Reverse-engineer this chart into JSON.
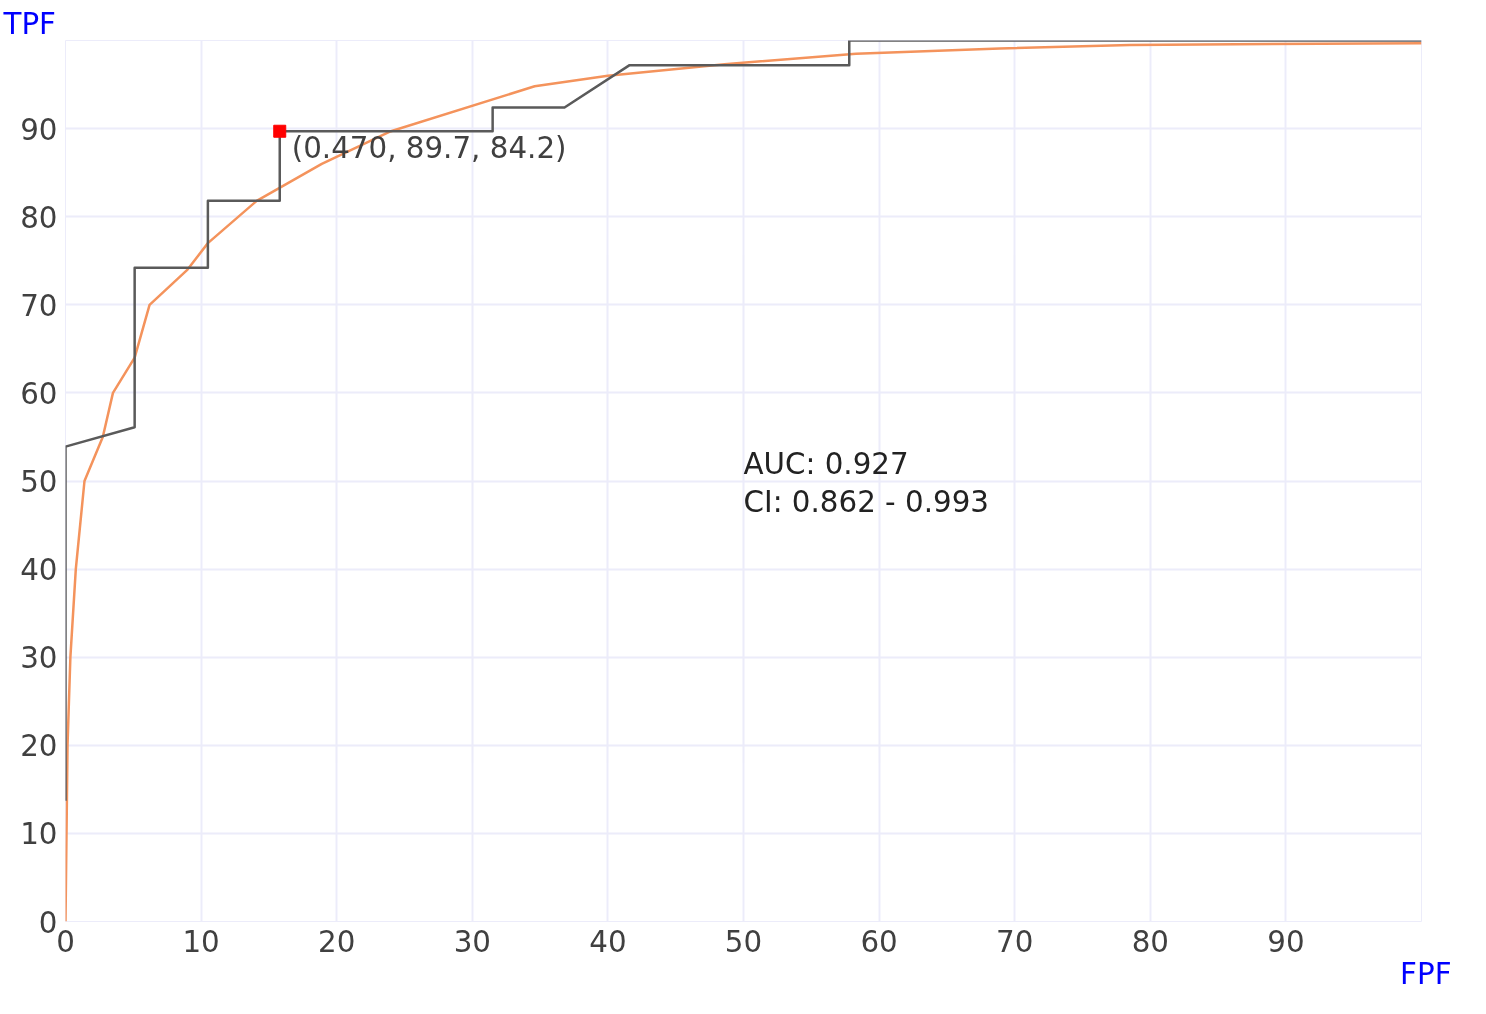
{
  "chart_data": {
    "type": "line",
    "xlabel": "FPF",
    "ylabel": "TPF",
    "xlim": [
      0,
      100
    ],
    "ylim": [
      0,
      100
    ],
    "xticks": [
      0,
      10,
      20,
      30,
      40,
      50,
      60,
      70,
      80,
      90,
      {
        "value": 100,
        "label": null
      }
    ],
    "yticks": [
      0,
      10,
      20,
      30,
      40,
      50,
      60,
      70,
      80,
      90,
      {
        "value": 100,
        "label": null
      }
    ],
    "grid": true,
    "marker": "none",
    "line_style": "solid",
    "series": [
      {
        "color": "#f4935c",
        "x": [
          0,
          0.15,
          0.36,
          0.76,
          1.4,
          2.75,
          3.5,
          5.1,
          6.2,
          9.0,
          10.5,
          14.1,
          18.9,
          24,
          34.6,
          40,
          48.6,
          58.3,
          68.9,
          78.5,
          100
        ],
        "values": [
          0,
          20,
          30,
          40,
          50,
          55,
          60,
          64,
          70,
          74,
          77,
          81.8,
          86,
          89.7,
          94.8,
          96.0,
          97.3,
          98.5,
          99.1,
          99.5,
          99.7
        ]
      },
      {
        "color": "#5a5a5a",
        "x": [
          0,
          0,
          5.1,
          5.1,
          10.5,
          10.5,
          15.8,
          15.8,
          31.5,
          31.5,
          36.8,
          41.6,
          57.8,
          57.8,
          100
        ],
        "values": [
          13.7,
          53.9,
          56.1,
          74.2,
          74.2,
          81.8,
          81.8,
          89.7,
          89.7,
          92.4,
          92.4,
          97.2,
          97.2,
          100,
          100
        ]
      },
      {
        "type": "scatter",
        "color": "#ff0000",
        "marker": "square",
        "x": [
          15.8
        ],
        "values": [
          89.7
        ]
      }
    ],
    "annotations": [
      {
        "text": "(0.470, 89.7, 84.2)",
        "x": 15.8,
        "y": 89.7
      },
      "AUC: 0.927",
      "CI: 0.862 - 0.993"
    ]
  }
}
